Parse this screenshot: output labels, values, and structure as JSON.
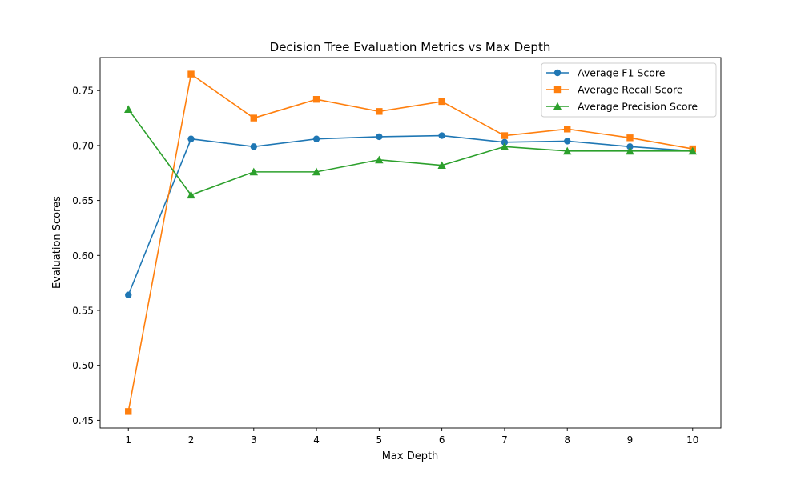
{
  "chart_data": {
    "type": "line",
    "title": "Decision Tree Evaluation Metrics vs Max Depth",
    "xlabel": "Max Depth",
    "ylabel": "Evaluation Scores",
    "x": [
      1,
      2,
      3,
      4,
      5,
      6,
      7,
      8,
      9,
      10
    ],
    "x_ticks": [
      "1",
      "2",
      "3",
      "4",
      "5",
      "6",
      "7",
      "8",
      "9",
      "10"
    ],
    "y_ticks": [
      "0.45",
      "0.50",
      "0.55",
      "0.60",
      "0.65",
      "0.70",
      "0.75"
    ],
    "y_tick_values": [
      0.45,
      0.5,
      0.55,
      0.6,
      0.65,
      0.7,
      0.75
    ],
    "xlim": [
      0.55,
      10.45
    ],
    "ylim": [
      0.443,
      0.78
    ],
    "grid": false,
    "legend_position": "top-right",
    "series": [
      {
        "name": "Average F1 Score",
        "marker": "circle",
        "color": "#1f77b4",
        "values": [
          0.564,
          0.706,
          0.699,
          0.706,
          0.708,
          0.709,
          0.703,
          0.704,
          0.699,
          0.695
        ]
      },
      {
        "name": "Average Recall Score",
        "marker": "square",
        "color": "#ff7f0e",
        "values": [
          0.458,
          0.765,
          0.725,
          0.742,
          0.731,
          0.74,
          0.709,
          0.715,
          0.707,
          0.697
        ]
      },
      {
        "name": "Average Precision Score",
        "marker": "triangle",
        "color": "#2ca02c",
        "values": [
          0.733,
          0.655,
          0.676,
          0.676,
          0.687,
          0.682,
          0.699,
          0.695,
          0.695,
          0.695
        ]
      }
    ]
  }
}
